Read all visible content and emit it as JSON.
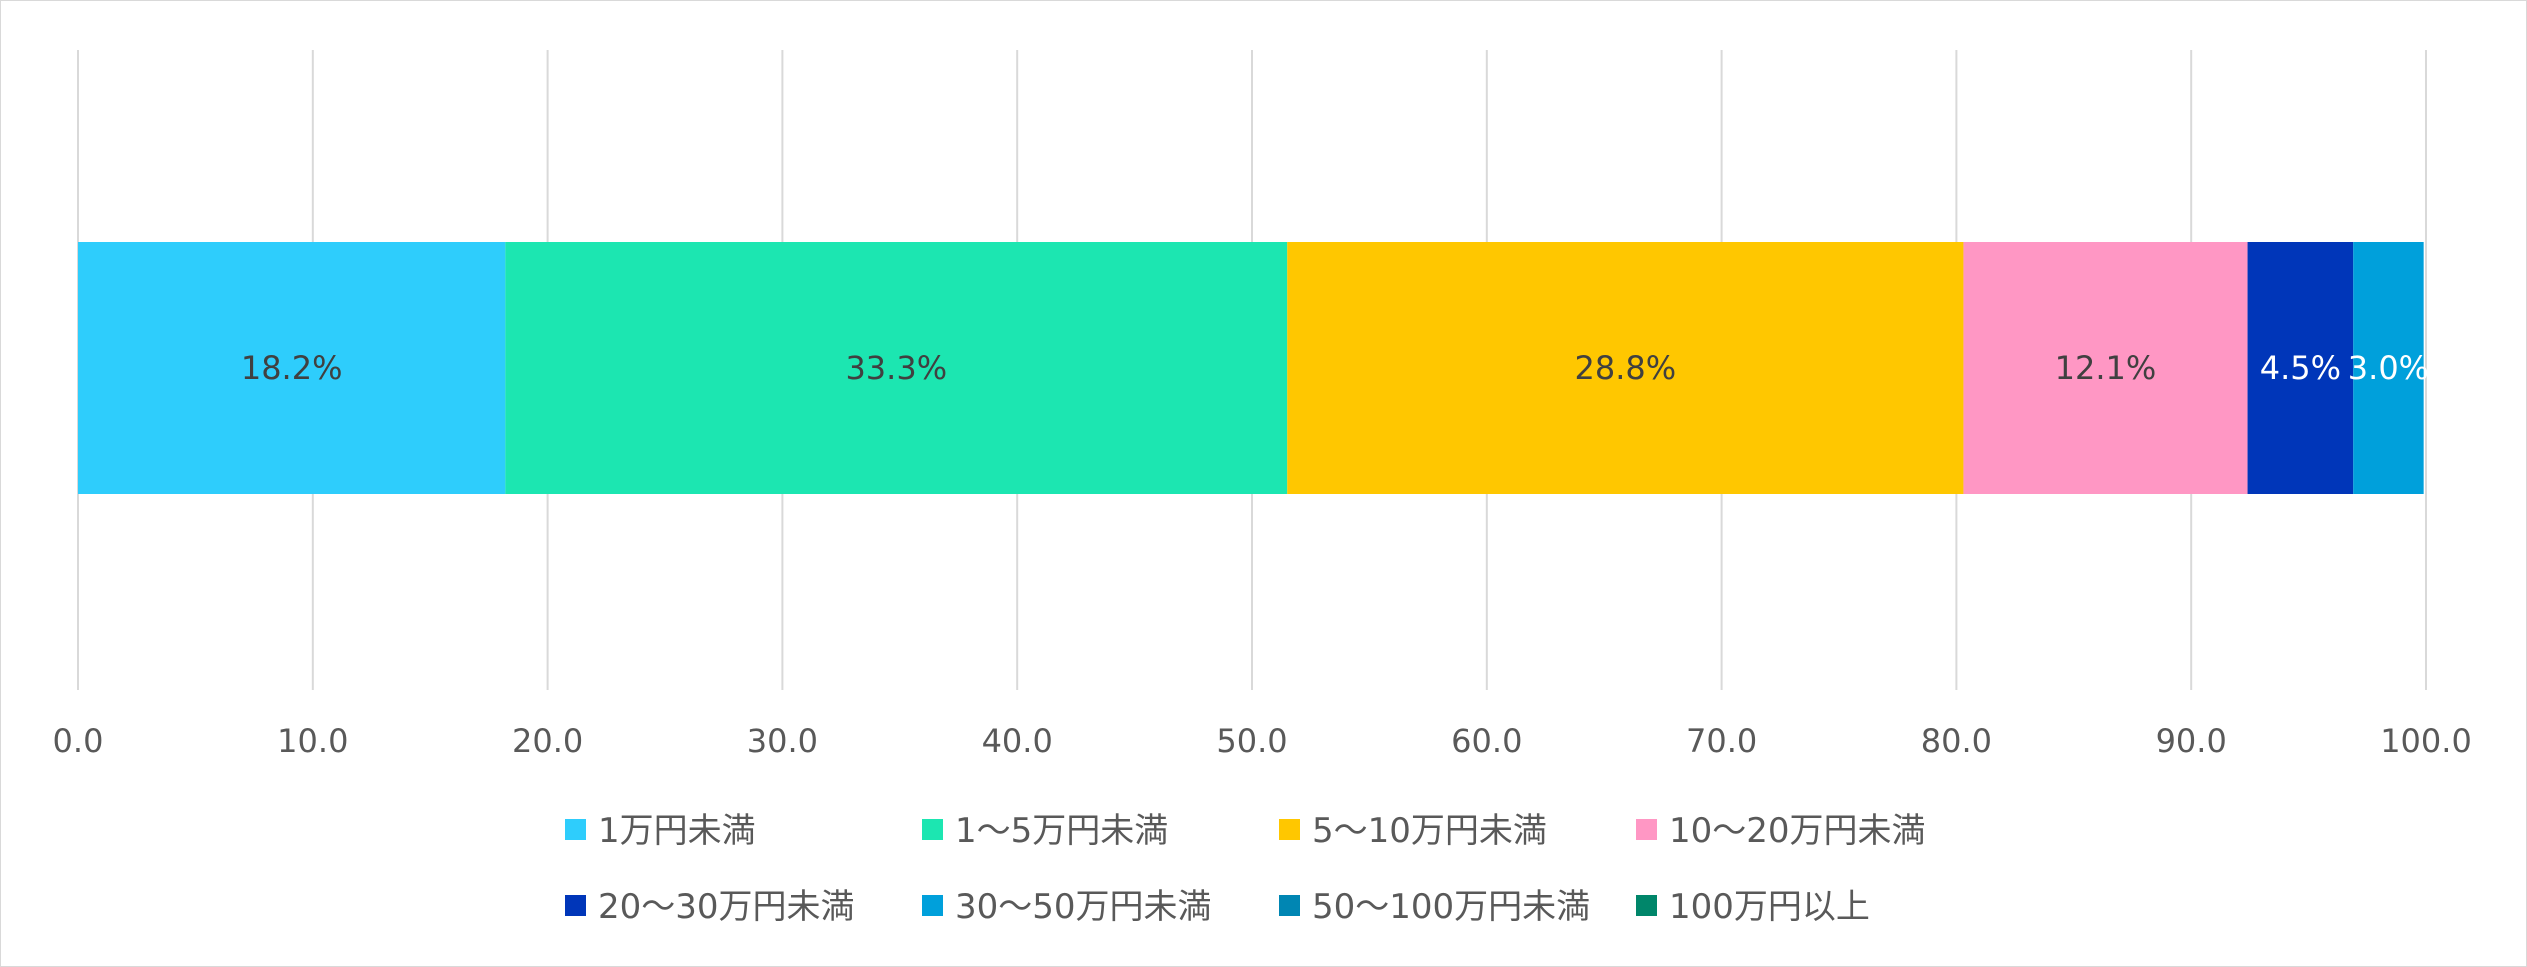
{
  "chart_data": {
    "type": "bar",
    "orientation": "horizontal",
    "stacked": true,
    "categories": [
      ""
    ],
    "xlim": [
      0,
      100
    ],
    "x_ticks": [
      "0.0",
      "10.0",
      "20.0",
      "30.0",
      "40.0",
      "50.0",
      "60.0",
      "70.0",
      "80.0",
      "90.0",
      "100.0"
    ],
    "grid": "vertical",
    "legend_position": "bottom",
    "series": [
      {
        "name": "1万円未満",
        "values": [
          18.2
        ],
        "label": "18.2%",
        "color": "#2ecdfc",
        "label_color": "#404040"
      },
      {
        "name": "1〜5万円未満",
        "values": [
          33.3
        ],
        "label": "33.3%",
        "color": "#1ce6b1",
        "label_color": "#404040"
      },
      {
        "name": "5〜10万円未満",
        "values": [
          28.8
        ],
        "label": "28.8%",
        "color": "#ffc700",
        "label_color": "#404040"
      },
      {
        "name": "10〜20万円未満",
        "values": [
          12.1
        ],
        "label": "12.1%",
        "color": "#ff97c4",
        "label_color": "#404040"
      },
      {
        "name": "20〜30万円未満",
        "values": [
          4.5
        ],
        "label": "4.5%",
        "color": "#0036b9",
        "label_color": "#ffffff"
      },
      {
        "name": "30〜50万円未満",
        "values": [
          3.0
        ],
        "label": "3.0%",
        "color": "#00a0db",
        "label_color": "#ffffff"
      },
      {
        "name": "50〜100万円未満",
        "values": [
          0
        ],
        "label": "",
        "color": "#0086b3",
        "label_color": "#ffffff"
      },
      {
        "name": "100万円以上",
        "values": [
          0
        ],
        "label": "",
        "color": "#00866a",
        "label_color": "#ffffff"
      }
    ]
  }
}
